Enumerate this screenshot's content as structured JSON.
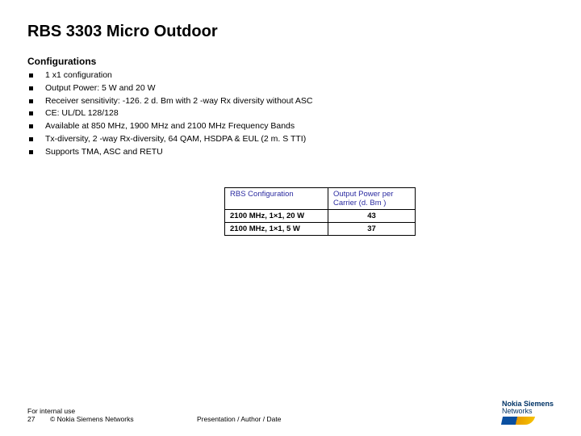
{
  "title": "RBS 3303 Micro Outdoor",
  "section_heading": "Configurations",
  "bullets": [
    "1 x1 configuration",
    "Output Power: 5 W and 20 W",
    "Receiver sensitivity: -126. 2 d. Bm with 2 -way Rx diversity without ASC",
    "CE: UL/DL 128/128",
    "Available at 850 MHz, 1900 MHz and 2100 MHz Frequency Bands",
    "Tx-diversity, 2 -way Rx-diversity, 64 QAM, HSDPA & EUL (2 m. S TTI)",
    "Supports TMA, ASC and RETU"
  ],
  "table": {
    "headers": [
      "RBS Configuration",
      "Output Power per Carrier (d. Bm )"
    ],
    "rows": [
      [
        "2100 MHz, 1×1, 20 W",
        "43"
      ],
      [
        "2100 MHz, 1×1, 5 W",
        "37"
      ]
    ],
    "header_color": "#2a2aa0",
    "border_color": "#000000"
  },
  "footer": {
    "classification": "For internal use",
    "page_no": "27",
    "copyright": "© Nokia Siemens Networks",
    "meta": "Presentation / Author / Date"
  },
  "brand": {
    "name": "Nokia Siemens",
    "sub": "Networks"
  }
}
